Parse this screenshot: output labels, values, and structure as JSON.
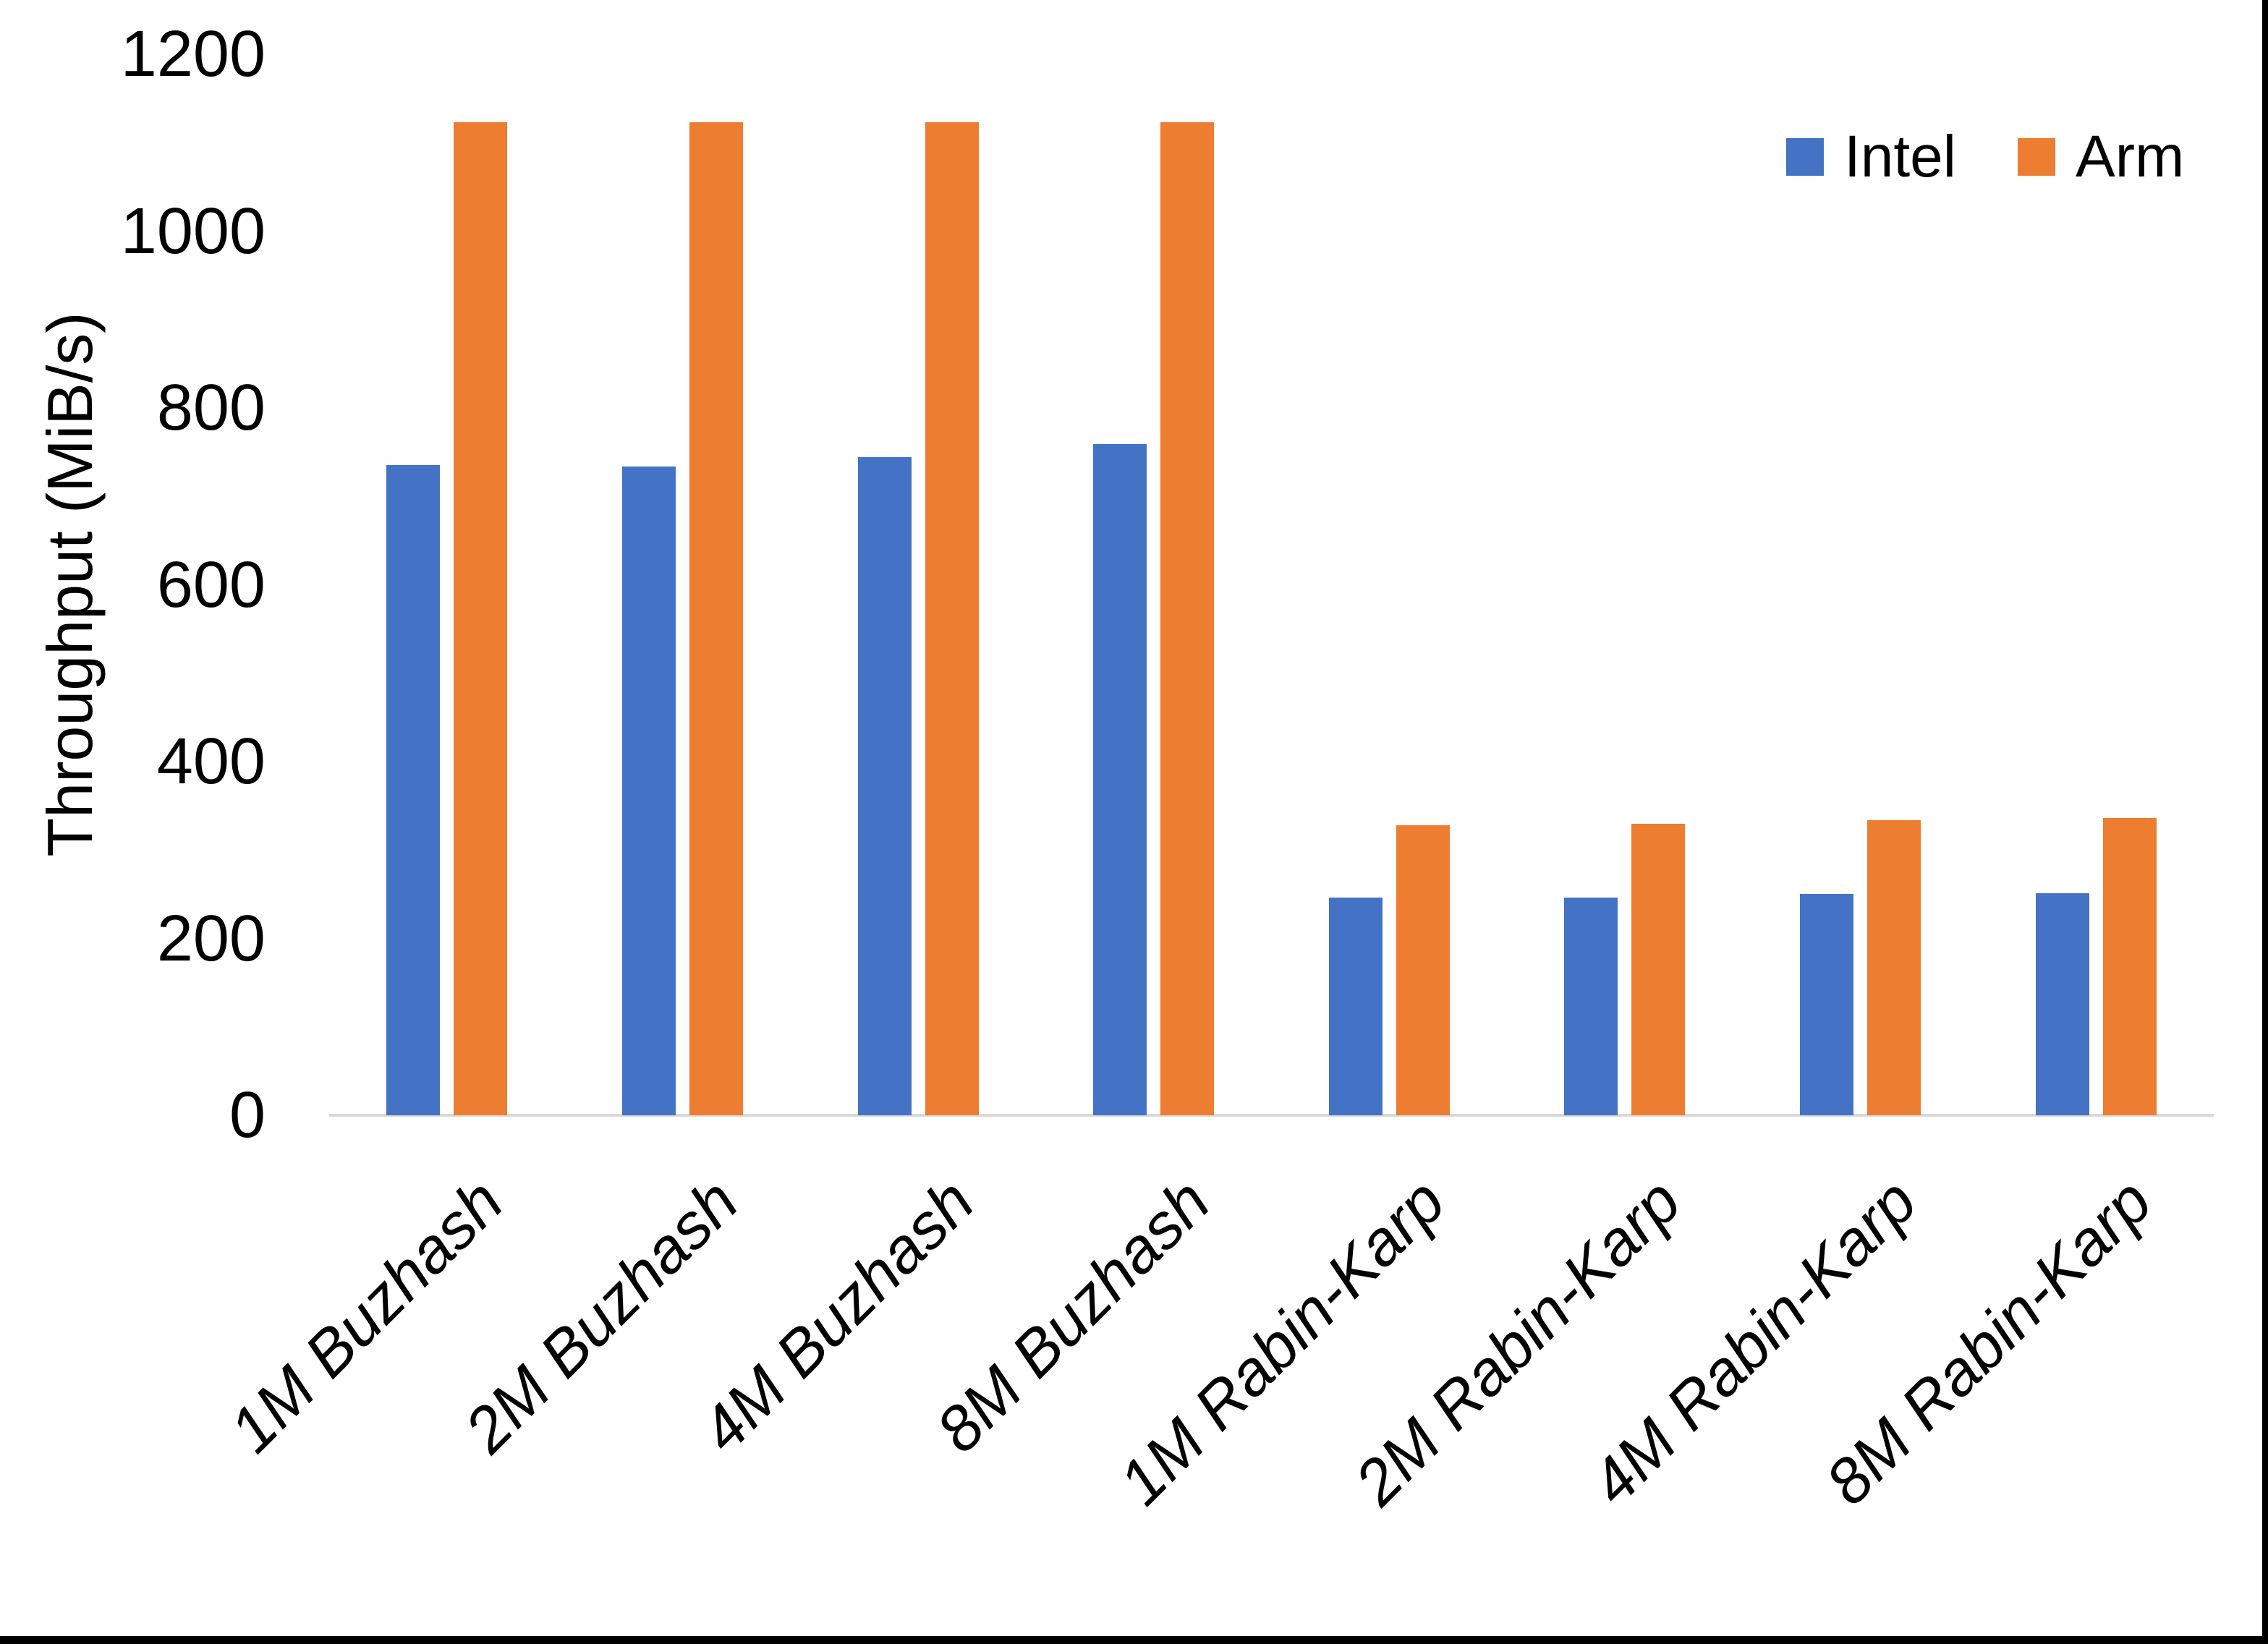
{
  "chart_data": {
    "type": "bar",
    "title": "",
    "xlabel": "",
    "ylabel": "Throughput (MiB/s)",
    "ylim": [
      0,
      1200
    ],
    "yticks": [
      0,
      200,
      400,
      600,
      800,
      1000,
      1200
    ],
    "grid": false,
    "legend_position": "top-right",
    "categories": [
      "1M Buzhash",
      "2M Buzhash",
      "4M Buzhash",
      "8M Buzhash",
      "1M Rabin-Karp",
      "2M Rabin-Karp",
      "4M Rabin-Karp",
      "8M Rabin-Karp"
    ],
    "series": [
      {
        "name": "Intel",
        "color": "#4472C4",
        "values": [
          735,
          734,
          744,
          759,
          246,
          246,
          250,
          251
        ]
      },
      {
        "name": "Arm",
        "color": "#ED7D31",
        "values": [
          1123,
          1123,
          1123,
          1123,
          328,
          330,
          334,
          336
        ]
      }
    ]
  },
  "colors": {
    "background": "#FFFFFF",
    "axis_line": "#D9D9D9",
    "text": "#000000",
    "border": "#000000"
  }
}
